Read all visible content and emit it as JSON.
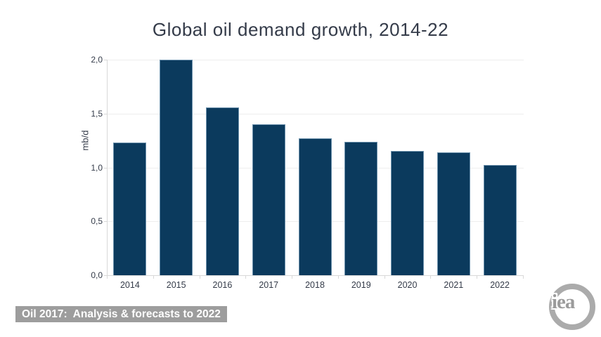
{
  "title": "Global oil demand growth, 2014-22",
  "chart_data": {
    "type": "bar",
    "title": "Global oil demand growth, 2014-22",
    "categories": [
      "2014",
      "2015",
      "2016",
      "2017",
      "2018",
      "2019",
      "2020",
      "2021",
      "2022"
    ],
    "values": [
      1.23,
      2.0,
      1.56,
      1.4,
      1.27,
      1.24,
      1.15,
      1.14,
      1.02
    ],
    "xlabel": "",
    "ylabel": "mb/d",
    "ylim": [
      0,
      2.0
    ],
    "ytick_step": 0.5,
    "ytick_labels": [
      "0,0",
      "0,5",
      "1,0",
      "1,5",
      "2,0"
    ],
    "grid": "horizontal",
    "legend": "none",
    "bar_color": "#0b3a5d",
    "bar_border_color": "#6d92ad",
    "gridline_color": "#eeeeee",
    "axis_color": "#d8d8d8",
    "text_color": "#343b49"
  },
  "footer": {
    "caption": "Oil 2017:  Analysis & forecasts to 2022",
    "caption_bg": "#9d9d9d",
    "caption_color": "#ffffff"
  },
  "logo": {
    "text": "iea",
    "color": "#ababab"
  }
}
